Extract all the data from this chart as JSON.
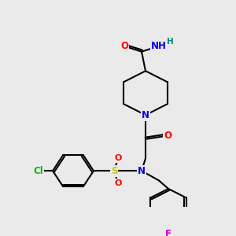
{
  "background_color": "#eaeaea",
  "colors": {
    "C": "#000000",
    "N": "#0000ff",
    "O": "#ff0000",
    "S": "#cccc00",
    "Cl": "#00bb00",
    "F": "#cc00cc",
    "H": "#008888"
  },
  "figsize": [
    3.0,
    3.0
  ],
  "dpi": 100
}
